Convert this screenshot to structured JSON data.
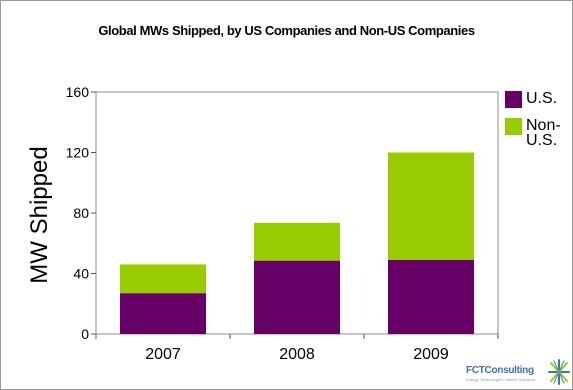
{
  "chart_data": {
    "type": "bar",
    "stacked": true,
    "title": "Global MWs Shipped, by US Companies and Non-US Companies",
    "ylabel": "MW  Shipped",
    "xlabel": "",
    "categories": [
      "2007",
      "2008",
      "2009"
    ],
    "ylim": [
      0,
      160
    ],
    "yticks": [
      0,
      40,
      80,
      120,
      160
    ],
    "grid": false,
    "legend_position": "right",
    "series": [
      {
        "name": "U.S.",
        "values": [
          27,
          48.5,
          49
        ],
        "color": "#660066"
      },
      {
        "name": "Non-U.S.",
        "values": [
          19,
          25,
          71
        ],
        "color": "#99cc00"
      }
    ]
  },
  "logo": {
    "name": "FCTConsulting",
    "tagline": "Energy Technologies. Market Solutions."
  }
}
